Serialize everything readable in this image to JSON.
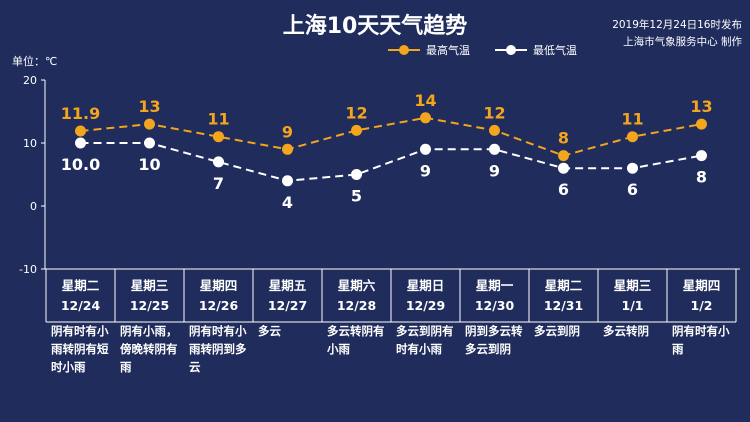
{
  "header": {
    "title": "上海10天天气趋势",
    "publish_line1": "2019年12月24日16时发布",
    "publish_line2": "上海市气象服务中心 制作",
    "unit": "单位：℃"
  },
  "colors": {
    "background": "#1f2c5c",
    "high": "#f3a51d",
    "low": "#ffffff"
  },
  "chart_data": {
    "type": "line",
    "title": "上海10天天气趋势",
    "ylabel": "",
    "ylim": [
      -10,
      20
    ],
    "yticks": [
      "20",
      "10",
      "0",
      "-10"
    ],
    "grid": false,
    "legend": "top",
    "days": [
      {
        "weekday": "星期二",
        "date": "12/24"
      },
      {
        "weekday": "星期三",
        "date": "12/25"
      },
      {
        "weekday": "星期四",
        "date": "12/26"
      },
      {
        "weekday": "星期五",
        "date": "12/27"
      },
      {
        "weekday": "星期六",
        "date": "12/28"
      },
      {
        "weekday": "星期日",
        "date": "12/29"
      },
      {
        "weekday": "星期一",
        "date": "12/30"
      },
      {
        "weekday": "星期二",
        "date": "12/31"
      },
      {
        "weekday": "星期三",
        "date": "1/1"
      },
      {
        "weekday": "星期四",
        "date": "1/2"
      }
    ],
    "series": [
      {
        "name": "最高气温",
        "values": [
          11.9,
          13,
          11,
          9,
          12,
          14,
          12,
          8,
          11,
          13
        ],
        "labels": [
          "11.9",
          "13",
          "11",
          "9",
          "12",
          "14",
          "12",
          "8",
          "11",
          "13"
        ]
      },
      {
        "name": "最低气温",
        "values": [
          10.0,
          10,
          7,
          4,
          5,
          9,
          9,
          6,
          6,
          8
        ],
        "labels": [
          "10.0",
          "10",
          "7",
          "4",
          "5",
          "9",
          "9",
          "6",
          "6",
          "8"
        ]
      }
    ],
    "weather": [
      "阴有时有小雨转阴有短时小雨",
      "阴有小雨，傍晚转阴有雨",
      "阴有时有小雨转阴到多云",
      "多云",
      "多云转阴有小雨",
      "多云到阴有时有小雨",
      "阴到多云转多云到阴",
      "多云到阴",
      "多云转阴",
      "阴有时有小雨"
    ]
  }
}
